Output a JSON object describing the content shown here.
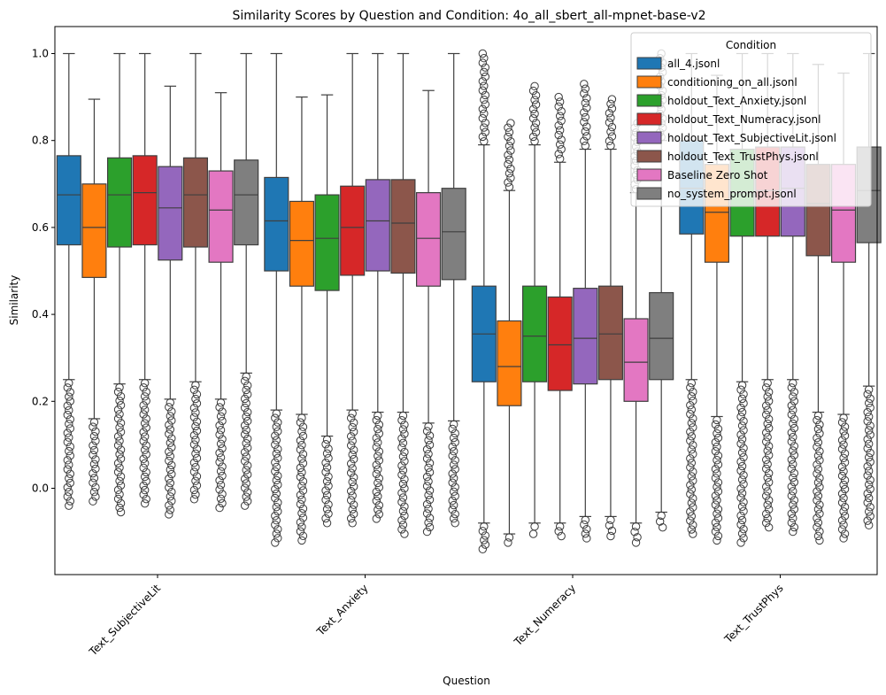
{
  "chart_data": {
    "type": "box",
    "title": "Similarity Scores by Question and Condition: 4o_all_sbert_all-mpnet-base-v2",
    "xlabel": "Question",
    "ylabel": "Similarity",
    "ylim": [
      -0.2,
      1.05
    ],
    "yticks": [
      "0.0",
      "0.2",
      "0.4",
      "0.6",
      "0.8",
      "1.0"
    ],
    "categories": [
      "Text_SubjectiveLit",
      "Text_Anxiety",
      "Text_Numeracy",
      "Text_TrustPhys"
    ],
    "grid": false,
    "legend": {
      "title": "Condition",
      "placement": "top-right"
    },
    "series": [
      {
        "name": "all_4.jsonl",
        "color": "#1f77b4",
        "boxes": [
          {
            "whislo": 0.25,
            "q1": 0.56,
            "median": 0.675,
            "q3": 0.765,
            "whishi": 1.0,
            "outlo": -0.04,
            "outhi": null
          },
          {
            "whislo": 0.18,
            "q1": 0.5,
            "median": 0.615,
            "q3": 0.715,
            "whishi": 1.0,
            "outlo": -0.125,
            "outhi": null
          },
          {
            "whislo": -0.08,
            "q1": 0.245,
            "median": 0.355,
            "q3": 0.465,
            "whishi": 0.79,
            "outlo": -0.14,
            "outhi": 1.0
          },
          {
            "whislo": 0.25,
            "q1": 0.585,
            "median": 0.69,
            "q3": 0.8,
            "whishi": 1.0,
            "outlo": -0.105,
            "outhi": null
          }
        ]
      },
      {
        "name": "conditioning_on_all.jsonl",
        "color": "#ff7f0e",
        "boxes": [
          {
            "whislo": 0.16,
            "q1": 0.485,
            "median": 0.6,
            "q3": 0.7,
            "whishi": 0.895,
            "outlo": -0.03,
            "outhi": null
          },
          {
            "whislo": 0.17,
            "q1": 0.465,
            "median": 0.57,
            "q3": 0.66,
            "whishi": 0.9,
            "outlo": -0.12,
            "outhi": null
          },
          {
            "whislo": -0.105,
            "q1": 0.19,
            "median": 0.28,
            "q3": 0.385,
            "whishi": 0.685,
            "outlo": -0.125,
            "outhi": 0.84
          },
          {
            "whislo": 0.165,
            "q1": 0.52,
            "median": 0.635,
            "q3": 0.745,
            "whishi": 0.95,
            "outlo": -0.12,
            "outhi": null
          }
        ]
      },
      {
        "name": "holdout_Text_Anxiety.jsonl",
        "color": "#2ca02c",
        "boxes": [
          {
            "whislo": 0.24,
            "q1": 0.555,
            "median": 0.675,
            "q3": 0.76,
            "whishi": 1.0,
            "outlo": -0.055,
            "outhi": null
          },
          {
            "whislo": 0.12,
            "q1": 0.455,
            "median": 0.575,
            "q3": 0.675,
            "whishi": 0.905,
            "outlo": -0.08,
            "outhi": null
          },
          {
            "whislo": -0.08,
            "q1": 0.245,
            "median": 0.35,
            "q3": 0.465,
            "whishi": 0.79,
            "outlo": -0.105,
            "outhi": 0.925
          },
          {
            "whislo": 0.245,
            "q1": 0.58,
            "median": 0.68,
            "q3": 0.78,
            "whishi": 1.0,
            "outlo": -0.125,
            "outhi": null
          }
        ]
      },
      {
        "name": "holdout_Text_Numeracy.jsonl",
        "color": "#d62728",
        "boxes": [
          {
            "whislo": 0.25,
            "q1": 0.56,
            "median": 0.68,
            "q3": 0.765,
            "whishi": 1.0,
            "outlo": -0.035,
            "outhi": null
          },
          {
            "whislo": 0.18,
            "q1": 0.49,
            "median": 0.6,
            "q3": 0.695,
            "whishi": 1.0,
            "outlo": -0.08,
            "outhi": null
          },
          {
            "whislo": -0.08,
            "q1": 0.225,
            "median": 0.33,
            "q3": 0.44,
            "whishi": 0.75,
            "outlo": -0.11,
            "outhi": 0.9
          },
          {
            "whislo": 0.25,
            "q1": 0.58,
            "median": 0.685,
            "q3": 0.785,
            "whishi": 1.0,
            "outlo": -0.09,
            "outhi": null
          }
        ]
      },
      {
        "name": "holdout_Text_SubjectiveLit.jsonl",
        "color": "#9467bd",
        "boxes": [
          {
            "whislo": 0.205,
            "q1": 0.525,
            "median": 0.645,
            "q3": 0.74,
            "whishi": 0.925,
            "outlo": -0.06,
            "outhi": null
          },
          {
            "whislo": 0.175,
            "q1": 0.5,
            "median": 0.615,
            "q3": 0.71,
            "whishi": 1.0,
            "outlo": -0.07,
            "outhi": null
          },
          {
            "whislo": -0.065,
            "q1": 0.24,
            "median": 0.345,
            "q3": 0.46,
            "whishi": 0.78,
            "outlo": -0.115,
            "outhi": 0.93
          },
          {
            "whislo": 0.25,
            "q1": 0.58,
            "median": 0.69,
            "q3": 0.785,
            "whishi": 1.0,
            "outlo": -0.1,
            "outhi": null
          }
        ]
      },
      {
        "name": "holdout_Text_TrustPhys.jsonl",
        "color": "#8c564b",
        "boxes": [
          {
            "whislo": 0.245,
            "q1": 0.555,
            "median": 0.675,
            "q3": 0.76,
            "whishi": 1.0,
            "outlo": -0.025,
            "outhi": null
          },
          {
            "whislo": 0.175,
            "q1": 0.495,
            "median": 0.61,
            "q3": 0.71,
            "whishi": 1.0,
            "outlo": -0.105,
            "outhi": null
          },
          {
            "whislo": -0.065,
            "q1": 0.25,
            "median": 0.355,
            "q3": 0.465,
            "whishi": 0.78,
            "outlo": -0.11,
            "outhi": 0.895
          },
          {
            "whislo": 0.175,
            "q1": 0.535,
            "median": 0.655,
            "q3": 0.745,
            "whishi": 0.975,
            "outlo": -0.12,
            "outhi": null
          }
        ]
      },
      {
        "name": "Baseline Zero Shot",
        "color": "#e377c2",
        "boxes": [
          {
            "whislo": 0.205,
            "q1": 0.52,
            "median": 0.64,
            "q3": 0.73,
            "whishi": 0.91,
            "outlo": -0.045,
            "outhi": null
          },
          {
            "whislo": 0.15,
            "q1": 0.465,
            "median": 0.575,
            "q3": 0.68,
            "whishi": 0.915,
            "outlo": -0.1,
            "outhi": null
          },
          {
            "whislo": -0.08,
            "q1": 0.2,
            "median": 0.29,
            "q3": 0.39,
            "whishi": 0.68,
            "outlo": -0.125,
            "outhi": 0.84
          },
          {
            "whislo": 0.17,
            "q1": 0.52,
            "median": 0.64,
            "q3": 0.745,
            "whishi": 0.955,
            "outlo": -0.115,
            "outhi": null
          }
        ]
      },
      {
        "name": "no_system_prompt.jsonl",
        "color": "#7f7f7f",
        "boxes": [
          {
            "whislo": 0.265,
            "q1": 0.56,
            "median": 0.675,
            "q3": 0.755,
            "whishi": 1.0,
            "outlo": -0.04,
            "outhi": null
          },
          {
            "whislo": 0.155,
            "q1": 0.48,
            "median": 0.59,
            "q3": 0.69,
            "whishi": 1.0,
            "outlo": -0.08,
            "outhi": null
          },
          {
            "whislo": -0.055,
            "q1": 0.25,
            "median": 0.345,
            "q3": 0.45,
            "whishi": 0.8,
            "outlo": -0.09,
            "outhi": 1.0
          },
          {
            "whislo": 0.235,
            "q1": 0.565,
            "median": 0.685,
            "q3": 0.785,
            "whishi": 1.0,
            "outlo": -0.085,
            "outhi": null
          }
        ]
      }
    ]
  }
}
